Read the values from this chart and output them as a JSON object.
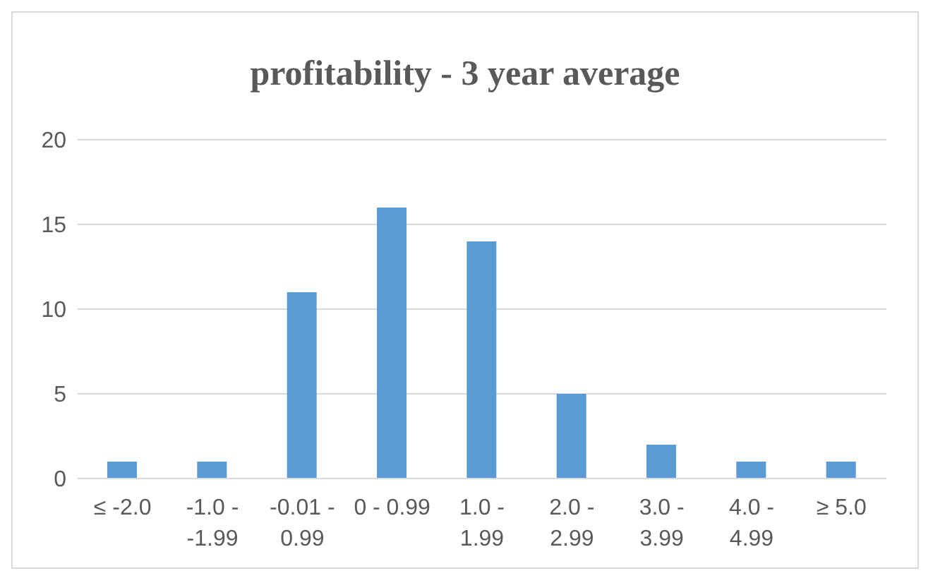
{
  "chart_data": {
    "type": "bar",
    "title": "profitability - 3 year average",
    "categories": [
      "≤ -2.0",
      "-1.0 - -1.99",
      "-0.01 - 0.99",
      "0 - 0.99",
      "1.0 - 1.99",
      "2.0 - 2.99",
      "3.0 - 3.99",
      "4.0 - 4.99",
      "≥ 5.0"
    ],
    "values": [
      1,
      1,
      11,
      16,
      14,
      5,
      2,
      1,
      1
    ],
    "color": "#5b9bd5",
    "ylim": [
      0,
      20
    ],
    "yticks": [
      0,
      5,
      10,
      15,
      20
    ],
    "grid": "y",
    "legend": false
  }
}
